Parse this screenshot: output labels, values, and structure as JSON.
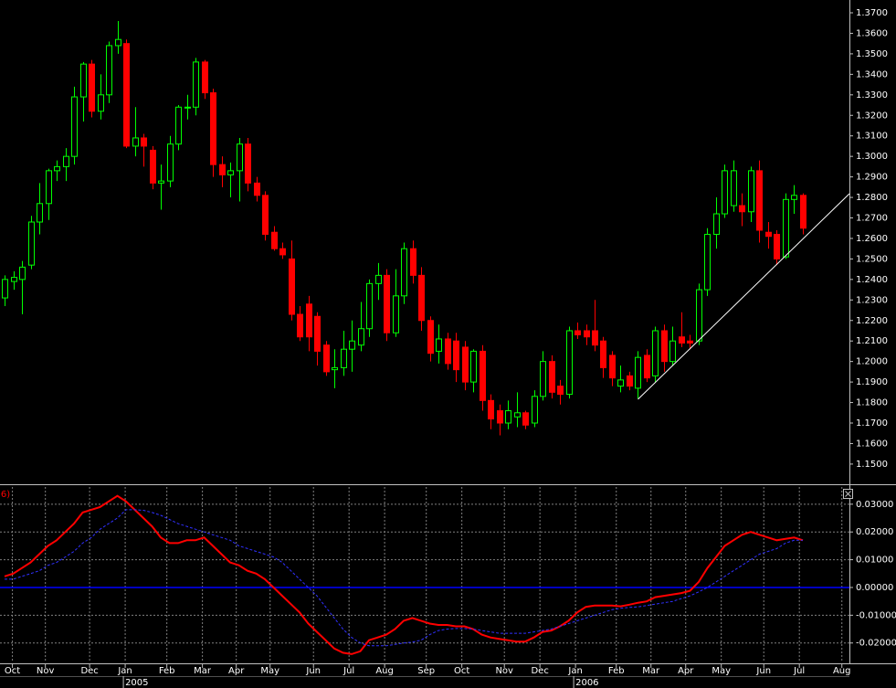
{
  "chart_data": [
    {
      "type": "candlestick",
      "categories": [
        null,
        null,
        null,
        null,
        null,
        null,
        null,
        null,
        null,
        null,
        null,
        null,
        null,
        null,
        null,
        null,
        null,
        null,
        null,
        null,
        null,
        null,
        null,
        null,
        null,
        null,
        null,
        null,
        null,
        null,
        null,
        null,
        null,
        null,
        null,
        null,
        null,
        null,
        null,
        null,
        null,
        null,
        null,
        null,
        null,
        null,
        null,
        null,
        null,
        null,
        null,
        null,
        null,
        null,
        null,
        null,
        null,
        null,
        null,
        null,
        null,
        null,
        null,
        null,
        null,
        null,
        null,
        null,
        null,
        null,
        null,
        null,
        null,
        null,
        null,
        null,
        null,
        null,
        null,
        null,
        null,
        null,
        null,
        null,
        null,
        null,
        null,
        null,
        null,
        null,
        null,
        null,
        null
      ],
      "open": [
        1.231,
        1.239,
        1.24,
        1.247,
        1.268,
        1.277,
        1.293,
        1.295,
        1.3,
        1.329,
        1.345,
        1.322,
        1.33,
        1.354,
        1.355,
        1.305,
        1.309,
        1.303,
        1.287,
        1.288,
        1.306,
        1.324,
        1.324,
        1.346,
        1.331,
        1.296,
        1.291,
        1.293,
        1.306,
        1.287,
        1.281,
        1.263,
        1.255,
        1.25,
        1.223,
        1.228,
        1.222,
        1.208,
        1.196,
        1.197,
        1.206,
        1.208,
        1.216,
        1.238,
        1.242,
        1.214,
        1.232,
        1.255,
        1.242,
        1.22,
        1.205,
        1.211,
        1.21,
        1.207,
        1.19,
        1.205,
        1.181,
        1.176,
        1.17,
        1.173,
        1.175,
        1.17,
        1.183,
        1.2,
        1.188,
        1.184,
        1.215,
        1.215,
        1.215,
        1.21,
        1.203,
        1.188,
        1.193,
        1.187,
        1.203,
        1.193,
        1.215,
        1.2,
        1.212,
        1.21,
        1.21,
        1.235,
        1.262,
        1.272,
        1.276,
        1.276,
        1.273,
        1.293,
        1.263,
        1.262,
        1.251,
        1.279,
        1.281
      ],
      "high": [
        1.242,
        1.244,
        1.249,
        1.271,
        1.287,
        1.294,
        1.298,
        1.304,
        1.334,
        1.346,
        1.347,
        1.34,
        1.356,
        1.366,
        1.357,
        1.324,
        1.311,
        1.305,
        1.296,
        1.31,
        1.325,
        1.33,
        1.348,
        1.347,
        1.333,
        1.3,
        1.297,
        1.309,
        1.309,
        1.29,
        1.283,
        1.266,
        1.258,
        1.259,
        1.227,
        1.232,
        1.224,
        1.21,
        1.206,
        1.215,
        1.22,
        1.229,
        1.24,
        1.248,
        1.245,
        1.245,
        1.258,
        1.259,
        1.246,
        1.222,
        1.218,
        1.214,
        1.214,
        1.21,
        1.206,
        1.208,
        1.184,
        1.179,
        1.181,
        1.185,
        1.176,
        1.186,
        1.205,
        1.203,
        1.191,
        1.217,
        1.219,
        1.218,
        1.23,
        1.212,
        1.205,
        1.198,
        1.195,
        1.205,
        1.206,
        1.217,
        1.218,
        1.217,
        1.224,
        1.213,
        1.238,
        1.265,
        1.28,
        1.296,
        1.298,
        1.282,
        1.295,
        1.298,
        1.268,
        1.264,
        1.282,
        1.286,
        1.282
      ],
      "low": [
        1.227,
        1.235,
        1.223,
        1.245,
        1.262,
        1.269,
        1.288,
        1.288,
        1.296,
        1.317,
        1.319,
        1.318,
        1.326,
        1.35,
        1.304,
        1.3,
        1.295,
        1.284,
        1.274,
        1.285,
        1.303,
        1.318,
        1.32,
        1.328,
        1.29,
        1.285,
        1.28,
        1.278,
        1.283,
        1.278,
        1.259,
        1.254,
        1.25,
        1.22,
        1.21,
        1.205,
        1.198,
        1.193,
        1.187,
        1.193,
        1.195,
        1.205,
        1.212,
        1.23,
        1.21,
        1.212,
        1.228,
        1.238,
        1.215,
        1.2,
        1.199,
        1.196,
        1.19,
        1.186,
        1.185,
        1.176,
        1.167,
        1.164,
        1.167,
        1.168,
        1.167,
        1.168,
        1.181,
        1.182,
        1.179,
        1.182,
        1.211,
        1.208,
        1.205,
        1.192,
        1.188,
        1.185,
        1.186,
        1.182,
        1.19,
        1.19,
        1.195,
        1.198,
        1.207,
        1.206,
        1.208,
        1.232,
        1.255,
        1.27,
        1.273,
        1.266,
        1.268,
        1.258,
        1.255,
        1.247,
        1.25,
        1.272,
        1.262
      ],
      "close": [
        1.24,
        1.241,
        1.246,
        1.268,
        1.277,
        1.293,
        1.295,
        1.3,
        1.329,
        1.345,
        1.322,
        1.33,
        1.354,
        1.357,
        1.305,
        1.309,
        1.305,
        1.287,
        1.288,
        1.306,
        1.324,
        1.324,
        1.346,
        1.331,
        1.296,
        1.291,
        1.293,
        1.306,
        1.287,
        1.281,
        1.262,
        1.255,
        1.252,
        1.223,
        1.212,
        1.212,
        1.205,
        1.195,
        1.197,
        1.206,
        1.21,
        1.216,
        1.238,
        1.242,
        1.214,
        1.232,
        1.255,
        1.242,
        1.22,
        1.204,
        1.211,
        1.199,
        1.196,
        1.19,
        1.205,
        1.181,
        1.172,
        1.17,
        1.176,
        1.175,
        1.169,
        1.183,
        1.2,
        1.185,
        1.184,
        1.215,
        1.213,
        1.212,
        1.208,
        1.197,
        1.192,
        1.191,
        1.188,
        1.202,
        1.192,
        1.215,
        1.2,
        1.21,
        1.209,
        1.209,
        1.235,
        1.262,
        1.272,
        1.293,
        1.293,
        1.273,
        1.293,
        1.264,
        1.261,
        1.25,
        1.279,
        1.281,
        1.265
      ],
      "up_color": "#00ff00",
      "down_color": "#ff0000",
      "trendline": {
        "x": [
          73,
          97.37
        ],
        "values": [
          1.1816,
          1.2818
        ],
        "color": "#ffffff"
      },
      "xlim": [
        -0.53,
        97.37
      ],
      "ylim": [
        1.14105,
        1.37624
      ],
      "yticks": [
        {
          "value": 1.37,
          "label": "1.3700"
        },
        {
          "value": 1.36,
          "label": "1.3600"
        },
        {
          "value": 1.35,
          "label": "1.3500"
        },
        {
          "value": 1.34,
          "label": "1.3400"
        },
        {
          "value": 1.33,
          "label": "1.3300"
        },
        {
          "value": 1.32,
          "label": "1.3200"
        },
        {
          "value": 1.31,
          "label": "1.3100"
        },
        {
          "value": 1.3,
          "label": "1.3000"
        },
        {
          "value": 1.29,
          "label": "1.2900"
        },
        {
          "value": 1.28,
          "label": "1.2800"
        },
        {
          "value": 1.27,
          "label": "1.2700"
        },
        {
          "value": 1.26,
          "label": "1.2600"
        },
        {
          "value": 1.25,
          "label": "1.2500"
        },
        {
          "value": 1.24,
          "label": "1.2400"
        },
        {
          "value": 1.23,
          "label": "1.2300"
        },
        {
          "value": 1.22,
          "label": "1.2200"
        },
        {
          "value": 1.21,
          "label": "1.2100"
        },
        {
          "value": 1.2,
          "label": "1.2000"
        },
        {
          "value": 1.19,
          "label": "1.1900"
        },
        {
          "value": 1.18,
          "label": "1.1800"
        },
        {
          "value": 1.17,
          "label": "1.1700"
        },
        {
          "value": 1.16,
          "label": "1.1600"
        },
        {
          "value": 1.15,
          "label": "1.1500"
        }
      ],
      "grid": false
    },
    {
      "type": "line",
      "title": "(6)",
      "categories": [
        null,
        null,
        null,
        null,
        null,
        null,
        null,
        null,
        null,
        null,
        null,
        null,
        null,
        null,
        null,
        null,
        null,
        null,
        null,
        null,
        null,
        null,
        null,
        null,
        null,
        null,
        null,
        null,
        null,
        null,
        null,
        null,
        null,
        null,
        null,
        null,
        null,
        null,
        null,
        null,
        null,
        null,
        null,
        null,
        null,
        null,
        null,
        null,
        null,
        null,
        null,
        null,
        null,
        null,
        null,
        null,
        null,
        null,
        null,
        null,
        null,
        null,
        null,
        null,
        null,
        null,
        null,
        null,
        null,
        null,
        null,
        null,
        null,
        null,
        null,
        null,
        null,
        null,
        null,
        null,
        null,
        null,
        null,
        null,
        null,
        null,
        null,
        null,
        null,
        null,
        null,
        null,
        null
      ],
      "series": [
        {
          "color": "#ff0000",
          "dash": false,
          "values": [
            0.004,
            0.005,
            0.007,
            0.009,
            0.012,
            0.015,
            0.017,
            0.02,
            0.023,
            0.027,
            0.028,
            0.029,
            0.031,
            0.033,
            0.031,
            0.028,
            0.025,
            0.022,
            0.018,
            0.016,
            0.016,
            0.017,
            0.017,
            0.018,
            0.015,
            0.012,
            0.009,
            0.008,
            0.006,
            0.005,
            0.003,
            0.0,
            -0.003,
            -0.006,
            -0.009,
            -0.013,
            -0.016,
            -0.019,
            -0.022,
            -0.0235,
            -0.024,
            -0.023,
            -0.019,
            -0.018,
            -0.017,
            -0.015,
            -0.012,
            -0.011,
            -0.012,
            -0.013,
            -0.0135,
            -0.0135,
            -0.014,
            -0.014,
            -0.015,
            -0.017,
            -0.018,
            -0.0185,
            -0.019,
            -0.0195,
            -0.0195,
            -0.018,
            -0.016,
            -0.0155,
            -0.014,
            -0.012,
            -0.009,
            -0.007,
            -0.0065,
            -0.0065,
            -0.0065,
            -0.0068,
            -0.0062,
            -0.0055,
            -0.005,
            -0.0035,
            -0.003,
            -0.0025,
            -0.002,
            -0.0012,
            0.002,
            0.007,
            0.011,
            0.015,
            0.017,
            0.019,
            0.02,
            0.019,
            0.018,
            0.017,
            0.0175,
            0.018,
            0.017
          ]
        },
        {
          "color": "#3030ff",
          "dash": true,
          "values": [
            0.003,
            0.003,
            0.004,
            0.005,
            0.006,
            0.008,
            0.009,
            0.011,
            0.013,
            0.016,
            0.018,
            0.021,
            0.023,
            0.025,
            0.028,
            0.028,
            0.0278,
            0.027,
            0.026,
            0.0245,
            0.023,
            0.022,
            0.021,
            0.02,
            0.019,
            0.018,
            0.017,
            0.015,
            0.014,
            0.013,
            0.012,
            0.011,
            0.009,
            0.006,
            0.003,
            0.0,
            -0.003,
            -0.007,
            -0.011,
            -0.015,
            -0.018,
            -0.02,
            -0.021,
            -0.021,
            -0.021,
            -0.0205,
            -0.02,
            -0.0197,
            -0.019,
            -0.017,
            -0.0155,
            -0.015,
            -0.0148,
            -0.0148,
            -0.015,
            -0.0155,
            -0.016,
            -0.0165,
            -0.0165,
            -0.0165,
            -0.0165,
            -0.016,
            -0.0155,
            -0.015,
            -0.014,
            -0.013,
            -0.012,
            -0.011,
            -0.01,
            -0.009,
            -0.008,
            -0.0075,
            -0.0072,
            -0.007,
            -0.0065,
            -0.006,
            -0.0055,
            -0.005,
            -0.004,
            -0.003,
            -0.0016,
            0.0,
            0.002,
            0.004,
            0.006,
            0.008,
            0.01,
            0.012,
            0.013,
            0.014,
            0.016,
            0.017,
            0.017
          ]
        }
      ],
      "hline": 0,
      "hline_color": "#0000ff",
      "xlim": [
        -0.53,
        97.37
      ],
      "ylim": [
        -0.027,
        0.0362
      ],
      "yticks": [
        {
          "value": 0.03,
          "label": "0.03000"
        },
        {
          "value": 0.02,
          "label": "0.02000"
        },
        {
          "value": 0.01,
          "label": "0.01000"
        },
        {
          "value": 0,
          "label": "0.00000"
        },
        {
          "value": -0.01,
          "label": "-0.01000"
        },
        {
          "value": -0.02,
          "label": "-0.02000"
        }
      ],
      "xticks": [
        {
          "value": 0.9,
          "label": "Oct"
        },
        {
          "value": 4.7,
          "label": "Nov"
        },
        {
          "value": 9.8,
          "label": "Dec"
        },
        {
          "value": 13.9,
          "label": "Jan"
        },
        {
          "value": 18.7,
          "label": "Feb"
        },
        {
          "value": 22.8,
          "label": "Mar"
        },
        {
          "value": 26.7,
          "label": "Apr"
        },
        {
          "value": 30.6,
          "label": "May"
        },
        {
          "value": 35.6,
          "label": "Jun"
        },
        {
          "value": 39.7,
          "label": "Jul"
        },
        {
          "value": 43.8,
          "label": "Aug"
        },
        {
          "value": 48.6,
          "label": "Sep"
        },
        {
          "value": 52.7,
          "label": "Oct"
        },
        {
          "value": 57.6,
          "label": "Nov"
        },
        {
          "value": 61.7,
          "label": "Dec"
        },
        {
          "value": 65.8,
          "label": "Jan"
        },
        {
          "value": 70.5,
          "label": "Feb"
        },
        {
          "value": 74.5,
          "label": "Mar"
        },
        {
          "value": 78.5,
          "label": "Apr"
        },
        {
          "value": 82.6,
          "label": "May"
        },
        {
          "value": 87.5,
          "label": "Jun"
        },
        {
          "value": 91.6,
          "label": "Jul"
        },
        {
          "value": 96.5,
          "label": "Aug"
        }
      ],
      "year_ticks": [
        {
          "value": 13.9,
          "label": "2005"
        },
        {
          "value": 65.8,
          "label": "2006"
        }
      ],
      "grid": true
    }
  ]
}
